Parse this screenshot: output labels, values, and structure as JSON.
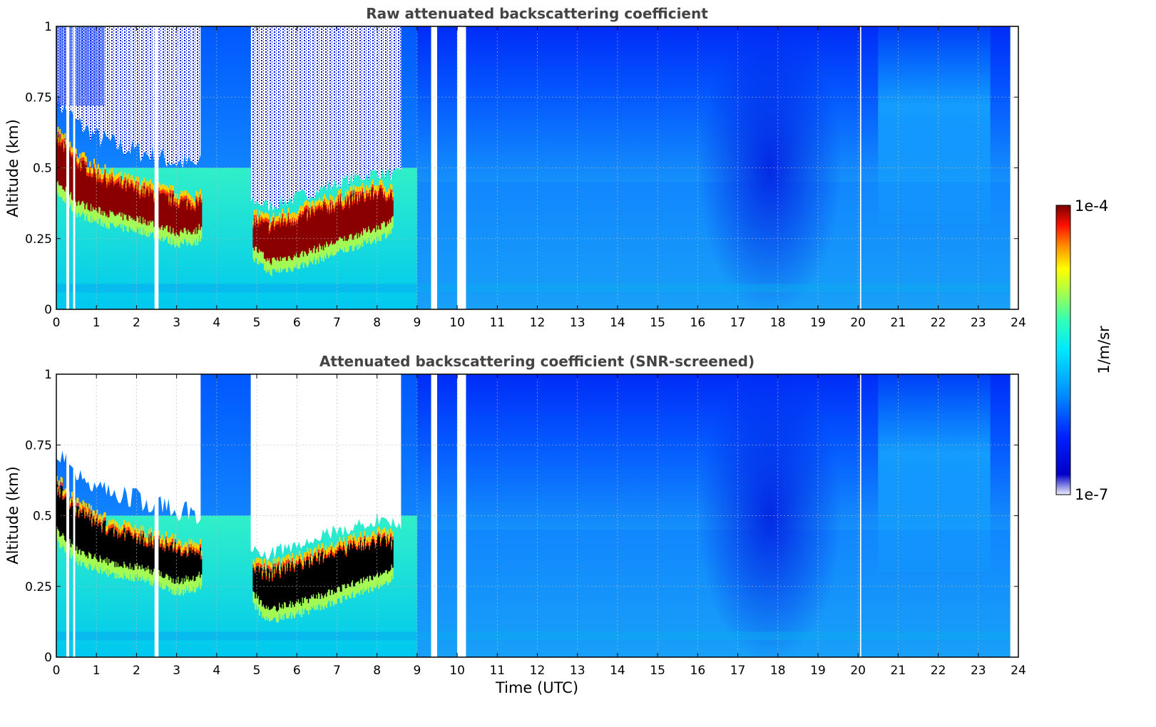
{
  "chart_data": [
    {
      "type": "heatmap",
      "title": "Raw attenuated backscattering coefficient",
      "xlabel": "",
      "ylabel": "Altitude (km)",
      "xlim": [
        0,
        24
      ],
      "ylim": [
        0,
        1
      ],
      "x_ticks": [
        "0",
        "1",
        "2",
        "3",
        "4",
        "5",
        "6",
        "7",
        "8",
        "9",
        "10",
        "11",
        "12",
        "13",
        "14",
        "15",
        "16",
        "17",
        "18",
        "19",
        "20",
        "21",
        "22",
        "23",
        "24"
      ],
      "y_ticks": [
        "0",
        "0.25",
        "0.5",
        "0.75",
        "1"
      ],
      "grid": true,
      "data_end_hour": 23.8,
      "missing_data_hours": [
        [
          0.25,
          0.32
        ],
        [
          0.42,
          0.47
        ],
        [
          2.45,
          2.55
        ],
        [
          9.35,
          9.5
        ],
        [
          10.0,
          10.22
        ],
        [
          20.05,
          20.08
        ]
      ],
      "layers": [
        {
          "name": "",
          "hours": [
            0,
            0.5,
            1,
            1.5,
            2,
            2.5,
            3,
            3.5,
            3.6
          ],
          "base_km": [
            0.45,
            0.38,
            0.35,
            0.33,
            0.32,
            0.3,
            0.27,
            0.28,
            0.3
          ],
          "top_km": [
            0.6,
            0.52,
            0.47,
            0.44,
            0.42,
            0.4,
            0.38,
            0.37,
            0.37
          ]
        },
        {
          "name": "",
          "hours": [
            4.9,
            5.3,
            6,
            7,
            8,
            8.4
          ],
          "base_km": [
            0.22,
            0.17,
            0.19,
            0.24,
            0.29,
            0.32
          ],
          "top_km": [
            0.31,
            0.29,
            0.32,
            0.37,
            0.41,
            0.4
          ]
        }
      ]
    },
    {
      "type": "heatmap",
      "title": "Attenuated backscattering coefficient (SNR-screened)",
      "xlabel": "Time (UTC)",
      "ylabel": "Altitude (km)",
      "xlim": [
        0,
        24
      ],
      "ylim": [
        0,
        1
      ],
      "x_ticks": [
        "0",
        "1",
        "2",
        "3",
        "4",
        "5",
        "6",
        "7",
        "8",
        "9",
        "10",
        "11",
        "12",
        "13",
        "14",
        "15",
        "16",
        "17",
        "18",
        "19",
        "20",
        "21",
        "22",
        "23",
        "24"
      ],
      "y_ticks": [
        "0",
        "0.25",
        "0.5",
        "0.75",
        "1"
      ],
      "grid": true,
      "data_end_hour": 23.8,
      "missing_data_hours": [
        [
          0.25,
          0.32
        ],
        [
          0.42,
          0.47
        ],
        [
          2.45,
          2.55
        ],
        [
          9.35,
          9.5
        ],
        [
          10.0,
          10.22
        ],
        [
          20.05,
          20.08
        ]
      ],
      "layers": [
        {
          "name": "",
          "hours": [
            0,
            0.5,
            1,
            1.5,
            2,
            2.5,
            3,
            3.5,
            3.6
          ],
          "base_km": [
            0.45,
            0.38,
            0.35,
            0.33,
            0.32,
            0.3,
            0.27,
            0.28,
            0.3
          ],
          "top_km": [
            0.6,
            0.52,
            0.47,
            0.44,
            0.42,
            0.4,
            0.38,
            0.37,
            0.37
          ]
        },
        {
          "name": "",
          "hours": [
            4.9,
            5.3,
            6,
            7,
            8,
            8.4
          ],
          "base_km": [
            0.22,
            0.17,
            0.19,
            0.24,
            0.29,
            0.32
          ],
          "top_km": [
            0.31,
            0.29,
            0.32,
            0.37,
            0.41,
            0.4
          ]
        }
      ]
    }
  ],
  "colorbar": {
    "label": "1/m/sr",
    "max_label": "1e-4",
    "min_label": "1e-7",
    "scale": "log",
    "range": [
      1e-07,
      0.0001
    ],
    "colormap": "jet",
    "colors": [
      "#f0f0fa",
      "#0000c8",
      "#0000ff",
      "#0080ff",
      "#00ffff",
      "#40ffb0",
      "#b0ff40",
      "#ffff00",
      "#ff8000",
      "#ff0000",
      "#800000"
    ]
  }
}
